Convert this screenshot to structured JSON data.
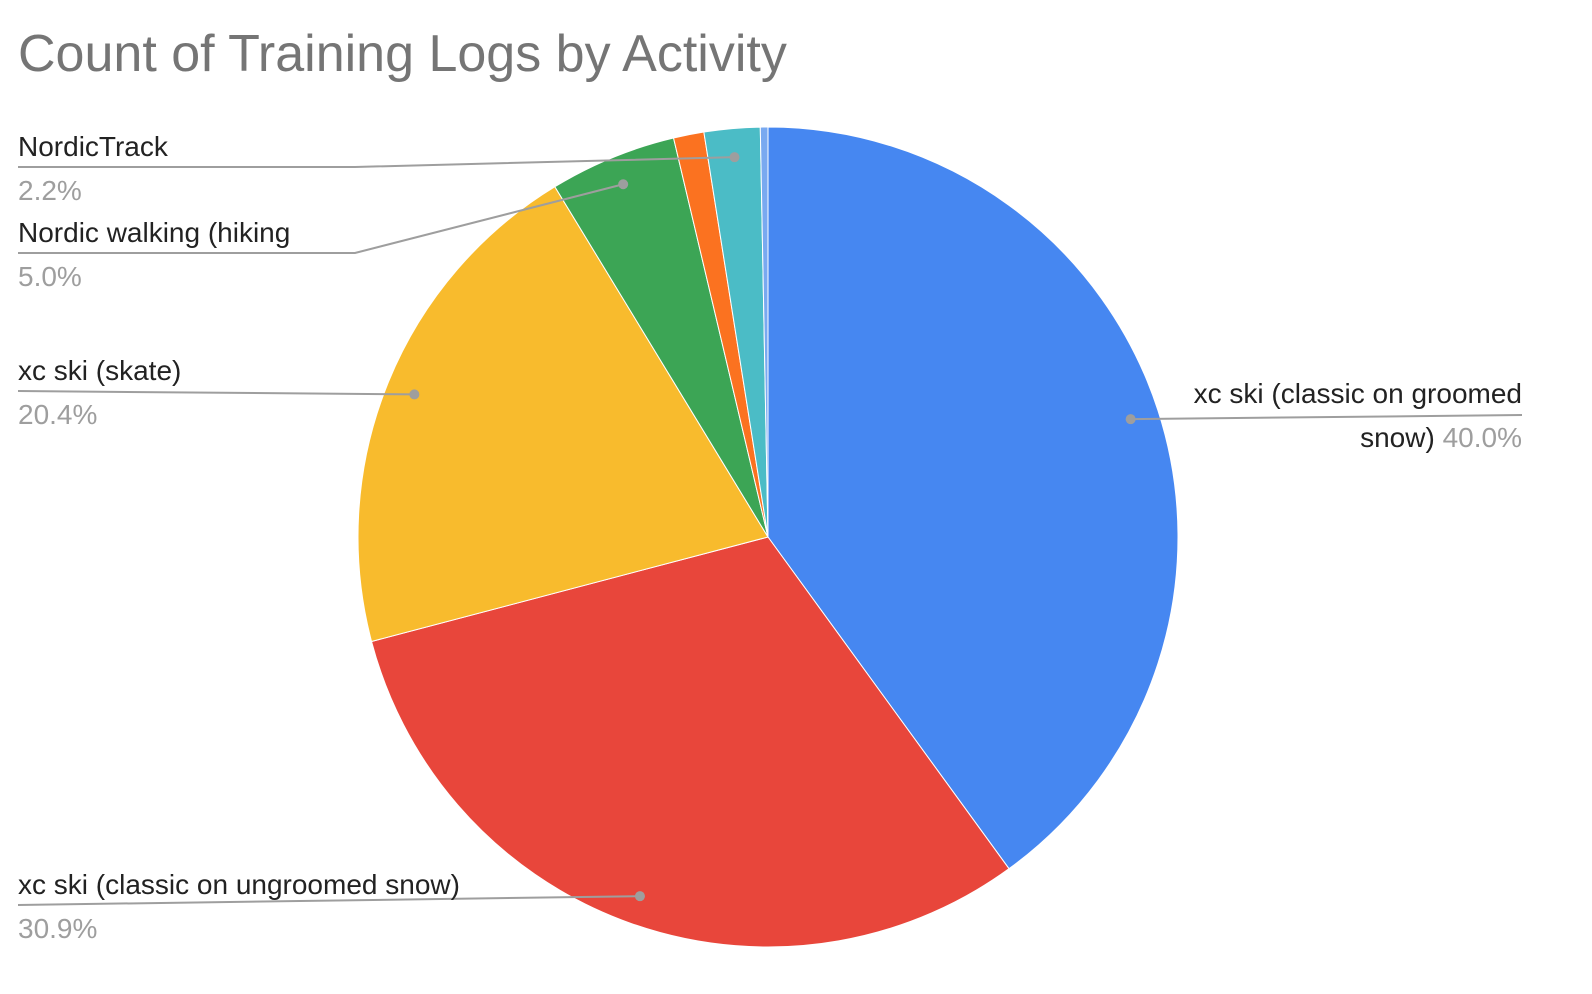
{
  "chart_data": {
    "type": "pie",
    "title": "Count of Training Logs by Activity",
    "categories": [
      "xc ski (classic on groomed snow)",
      "xc ski (classic on ungroomed snow)",
      "xc ski (skate)",
      "Nordic walking (hiking",
      null,
      "NordicTrack",
      null
    ],
    "values": [
      40.0,
      30.9,
      20.4,
      5.0,
      1.2,
      2.2,
      0.3
    ],
    "value_labels": [
      "40.0%",
      "30.9%",
      "20.4%",
      "5.0%",
      null,
      "2.2%",
      null
    ],
    "colors": [
      "#4687f1",
      "#e8463b",
      "#f8bb2d",
      "#3ca555",
      "#fb7220",
      "#4bbcc6",
      "#79a9f0"
    ]
  }
}
